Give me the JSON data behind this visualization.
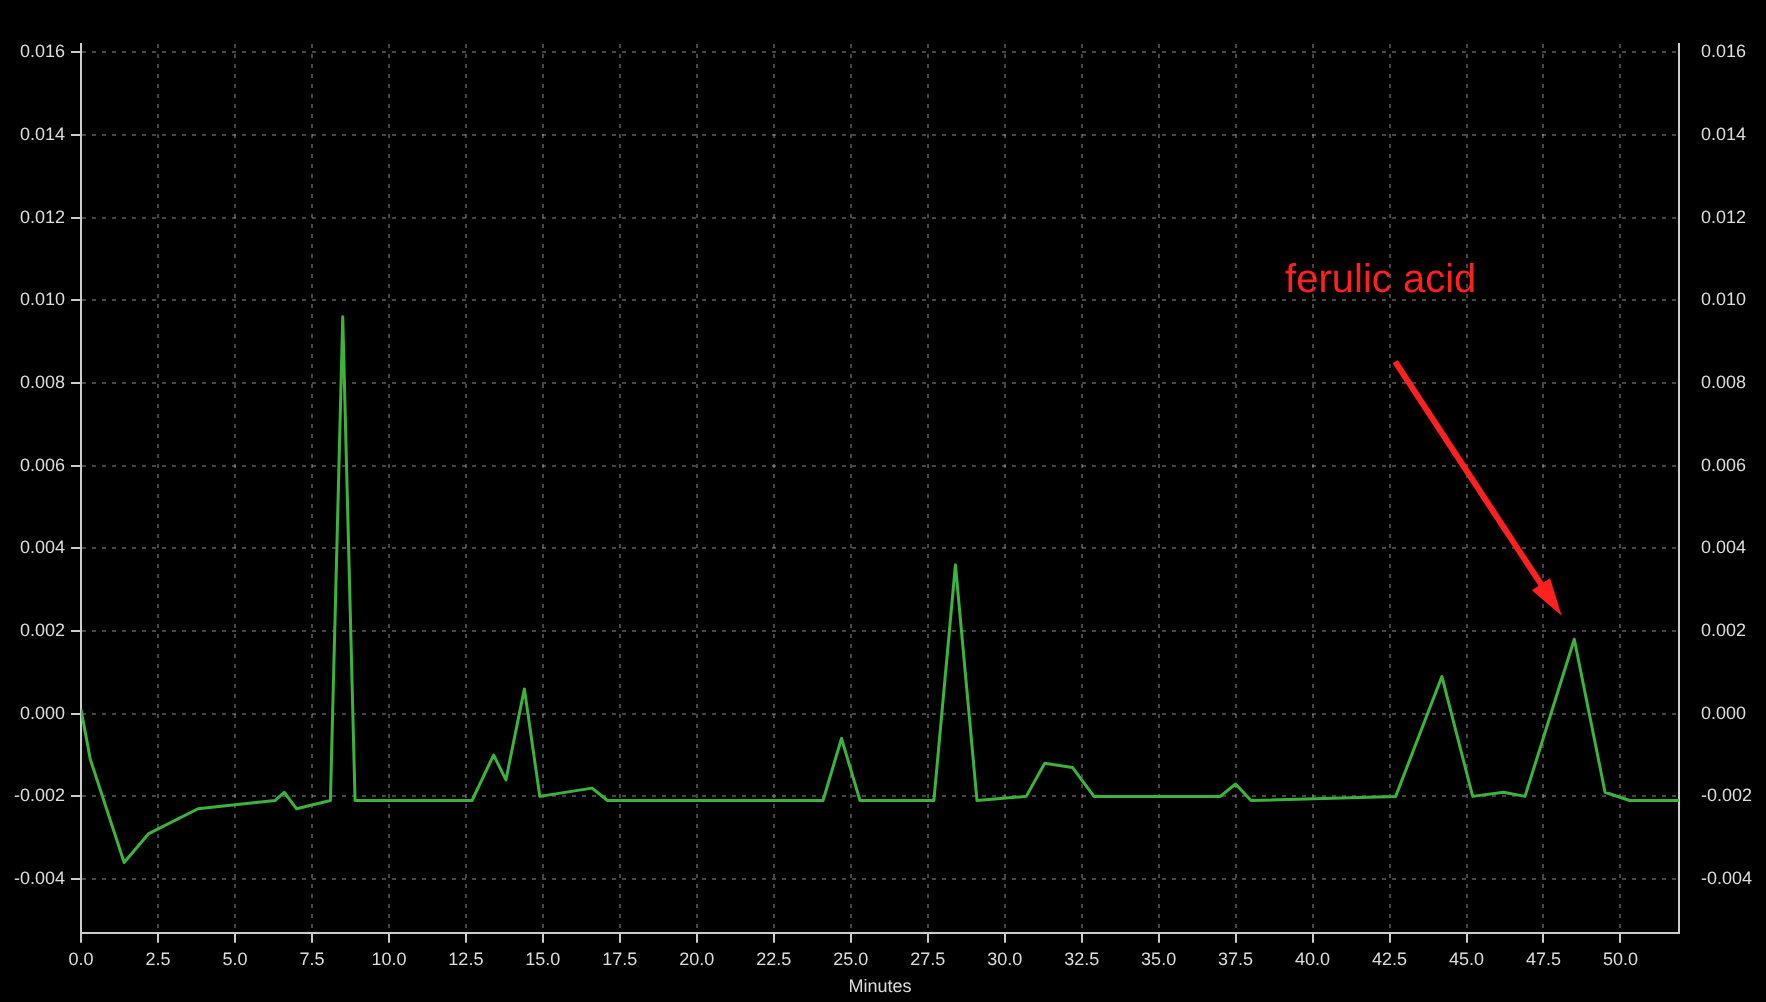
{
  "chart_data": {
    "type": "line",
    "xlabel": "Minutes",
    "x": [
      0.0,
      0.3,
      1.4,
      2.2,
      3.8,
      6.3,
      6.6,
      7.0,
      8.1,
      8.5,
      8.9,
      12.7,
      13.4,
      13.8,
      14.4,
      14.9,
      16.6,
      17.1,
      24.1,
      24.7,
      25.3,
      27.7,
      28.4,
      29.1,
      30.7,
      31.3,
      32.2,
      32.9,
      37.0,
      37.5,
      38.0,
      42.7,
      44.2,
      45.2,
      46.2,
      46.9,
      48.5,
      49.5,
      50.3,
      51.9
    ],
    "series": [
      {
        "color": "#3cb43c",
        "values": [
          0.0001,
          -0.0011,
          -0.0036,
          -0.0029,
          -0.0023,
          -0.0021,
          -0.0019,
          -0.0023,
          -0.0021,
          0.0096,
          -0.0021,
          -0.0021,
          -0.001,
          -0.0016,
          0.0006,
          -0.002,
          -0.0018,
          -0.0021,
          -0.0021,
          -0.0006,
          -0.0021,
          -0.0021,
          0.0036,
          -0.0021,
          -0.002,
          -0.0012,
          -0.0013,
          -0.002,
          -0.002,
          -0.0017,
          -0.0021,
          -0.002,
          0.0009,
          -0.002,
          -0.0019,
          -0.002,
          0.0018,
          -0.0019,
          -0.0021,
          -0.0021
        ]
      }
    ],
    "xlim": [
      0,
      51.9
    ],
    "xticks": [
      {
        "value": 0,
        "label": "0.0"
      },
      2.5,
      {
        "value": 5,
        "label": "5.0"
      },
      7.5,
      {
        "value": 10,
        "label": "10.0"
      },
      12.5,
      {
        "value": 15,
        "label": "15.0"
      },
      17.5,
      {
        "value": 20,
        "label": "20.0"
      },
      22.5,
      {
        "value": 25,
        "label": "25.0"
      },
      27.5,
      {
        "value": 30,
        "label": "30.0"
      },
      32.5,
      {
        "value": 35,
        "label": "35.0"
      },
      37.5,
      {
        "value": 40,
        "label": "40.0"
      },
      42.5,
      {
        "value": 45,
        "label": "45.0"
      },
      47.5,
      {
        "value": 50,
        "label": "50.0"
      }
    ],
    "ylim": [
      -0.0053,
      0.0162
    ],
    "yticks": [
      -0.004,
      -0.002,
      {
        "value": 0,
        "label": "0.000"
      },
      0.002,
      0.004,
      0.006,
      0.008,
      {
        "value": 0.01,
        "label": "0.010"
      },
      0.012,
      0.014,
      0.016
    ],
    "y2lim": [
      -0.0053,
      0.0162
    ],
    "y2ticks": [
      -0.004,
      -0.002,
      {
        "value": 0,
        "label": "0.000"
      },
      0.002,
      0.004,
      0.006,
      0.008,
      {
        "value": 0.01,
        "label": "0.010"
      },
      0.012,
      0.014,
      0.016
    ],
    "grid": true,
    "legend": false,
    "marker": "none",
    "line_style": "solid",
    "annotations": [
      "ferulic acid"
    ]
  }
}
